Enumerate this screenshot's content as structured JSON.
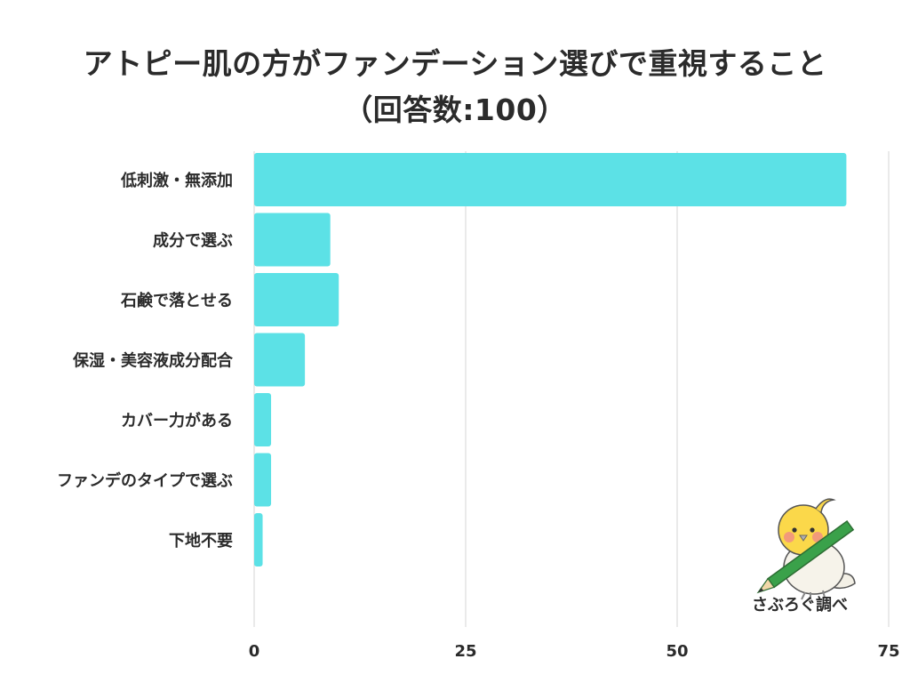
{
  "title": {
    "line1": "アトピー肌の方がファンデーション選びで重視すること",
    "line2": "（回答数:100）"
  },
  "chart_data": {
    "type": "bar",
    "orientation": "horizontal",
    "categories": [
      "低刺激・無添加",
      "成分で選ぶ",
      "石鹸で落とせる",
      "保湿・美容液成分配合",
      "カバー力がある",
      "ファンデのタイプで選ぶ",
      "下地不要"
    ],
    "values": [
      70,
      9,
      10,
      6,
      2,
      2,
      1
    ],
    "xlim": [
      0,
      75
    ],
    "xticks": [
      0,
      25,
      50,
      75
    ],
    "grid": true,
    "bar_color": "#5ce1e6"
  },
  "brand": {
    "label": "さぶろぐ調べ",
    "mascot_icon": "bird-with-pencil-icon"
  }
}
